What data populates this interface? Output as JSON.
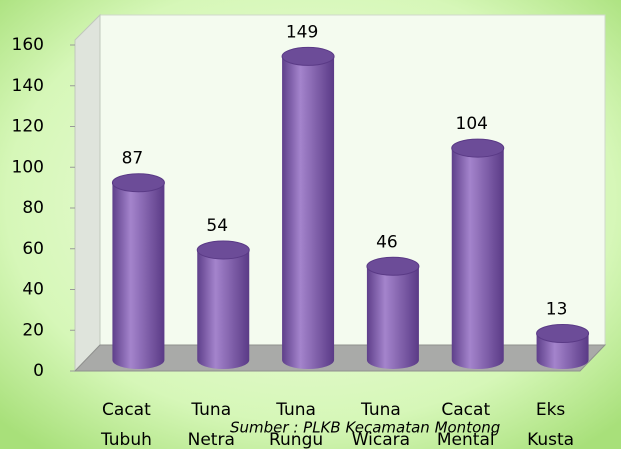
{
  "chart_data": {
    "type": "bar",
    "categories": [
      [
        "Cacat",
        "Tubuh"
      ],
      [
        "Tuna",
        "Netra"
      ],
      [
        "Tuna",
        "Rungu"
      ],
      [
        "Tuna",
        "Wicara"
      ],
      [
        "Cacat",
        "Mental"
      ],
      [
        "Eks",
        "Kusta"
      ]
    ],
    "values": [
      87,
      54,
      149,
      46,
      104,
      13
    ],
    "color": "#8a66b8",
    "ylim": [
      0,
      160
    ],
    "yticks": [
      0,
      20,
      40,
      60,
      80,
      100,
      120,
      140,
      160
    ],
    "source": "Sumber : PLKB Kecamatan Montong"
  }
}
